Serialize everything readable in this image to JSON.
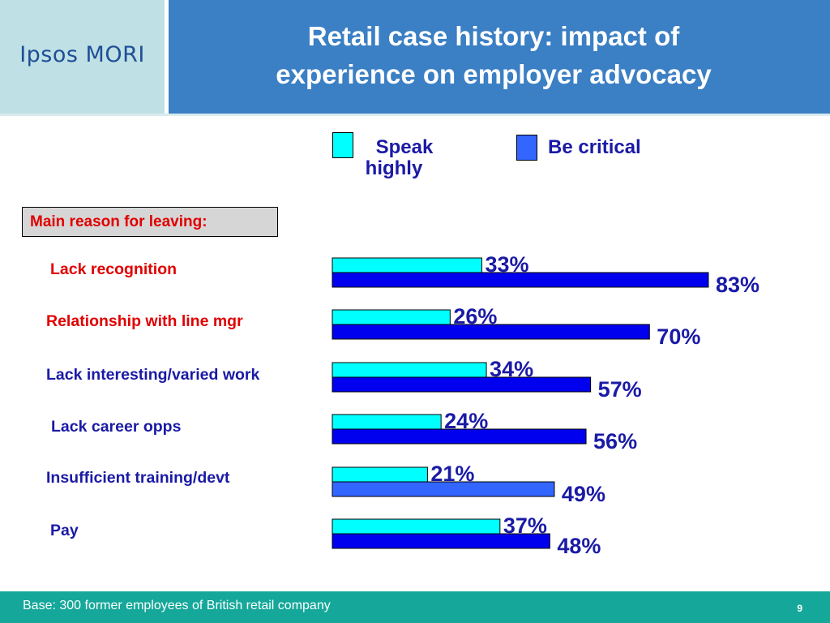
{
  "header": {
    "logo": "Ipsos MORI",
    "title_line1": "Retail case history: impact of",
    "title_line2": "experience on employer advocacy"
  },
  "reason_box": "Main reason for leaving:",
  "footer": {
    "base": "Base: 300 former employees of British retail company",
    "page": "9"
  },
  "colors": {
    "speak_highly": "#00ffff",
    "be_critical": "#0000ee",
    "be_critical_alt": "#3366ff",
    "header_blue": "#3b7fc4",
    "logo_bg": "#bfe0e4",
    "footer_teal": "#15a89a",
    "label_red": "#e00000",
    "label_navy": "#1a1aa6"
  },
  "chart_data": {
    "type": "bar",
    "orientation": "horizontal",
    "categories": [
      "Lack recognition",
      "Relationship with line mgr",
      "Lack interesting/varied work",
      "Lack career opps",
      "Insufficient training/devt",
      "Pay"
    ],
    "category_colors": [
      "#e00000",
      "#e00000",
      "#1a1aa6",
      "#1a1aa6",
      "#1a1aa6",
      "#1a1aa6"
    ],
    "series": [
      {
        "name": "Speak highly",
        "values": [
          33,
          26,
          34,
          24,
          21,
          37
        ],
        "labels": [
          "33%",
          "26%",
          "34%",
          "24%",
          "21%",
          "37%"
        ]
      },
      {
        "name": "Be critical",
        "values": [
          83,
          70,
          57,
          56,
          49,
          48
        ],
        "labels": [
          "83%",
          "70%",
          "57%",
          "56%",
          "49%",
          "48%"
        ]
      }
    ],
    "legend": {
      "entries": [
        "Speak highly",
        "Be critical"
      ],
      "position": "top"
    },
    "xlim": [
      0,
      100
    ],
    "grid": false,
    "xlabel": "",
    "ylabel": ""
  }
}
